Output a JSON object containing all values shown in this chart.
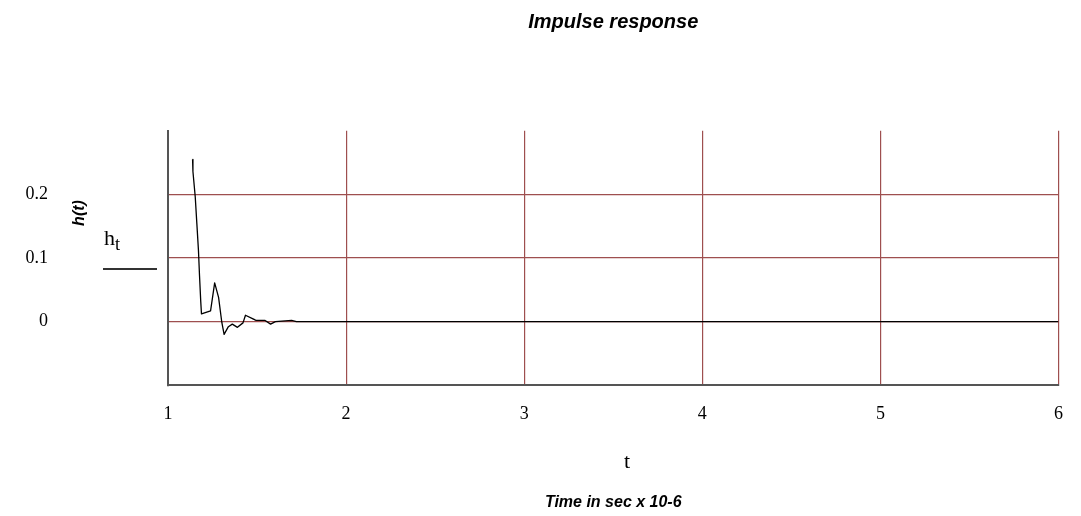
{
  "chart_data": {
    "type": "line",
    "title": "Impulse response",
    "xlabel": "Time in sec x 10-6",
    "ylabel": "h(t)",
    "annotations": [
      "h$_{t}$",
      "t"
    ],
    "x": [
      1.138,
      1.14,
      1.153,
      1.162,
      1.171,
      1.177,
      1.184,
      1.188,
      1.239,
      1.262,
      1.284,
      1.302,
      1.315,
      1.339,
      1.361,
      1.39,
      1.421,
      1.435,
      1.494,
      1.543,
      1.576,
      1.603,
      1.694,
      1.721,
      2,
      3,
      4,
      5,
      6
    ],
    "values": [
      0.255,
      0.236,
      0.196,
      0.154,
      0.112,
      0.072,
      0.031,
      0.012,
      0.017,
      0.061,
      0.038,
      -0.001,
      -0.02,
      -0.008,
      -0.004,
      -0.009,
      -0.002,
      0.01,
      0.002,
      0.002,
      -0.004,
      0,
      0.002,
      0,
      0,
      0,
      0,
      0,
      0
    ],
    "color": "#000000",
    "xlim": [
      1,
      6
    ],
    "xticks": [
      1,
      2,
      3,
      4,
      5,
      6
    ],
    "ylim": [
      -0.1,
      0.3
    ],
    "yticks": [
      0,
      0.1,
      0.2
    ],
    "grid": true,
    "legend": false,
    "marker": "none",
    "line_style": "solid"
  }
}
